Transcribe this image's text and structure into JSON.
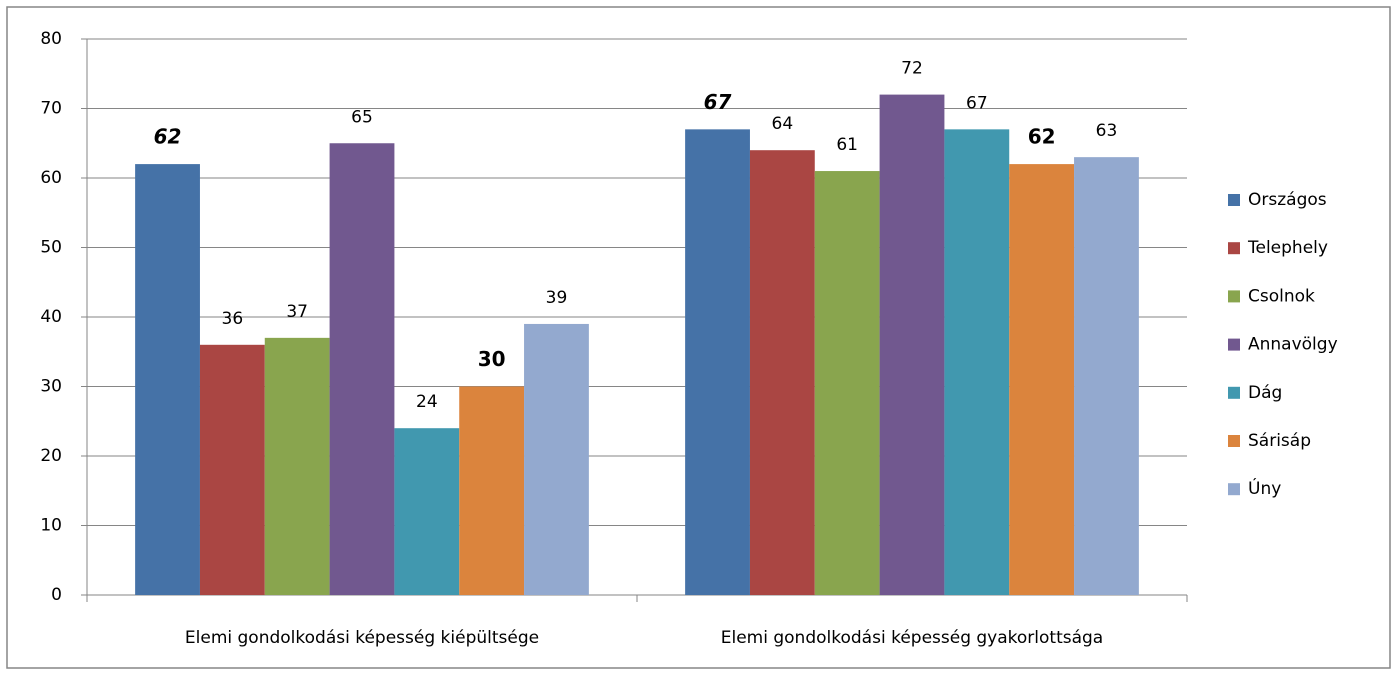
{
  "chart_data": {
    "type": "bar",
    "categories": [
      "Elemi gondolkodási képesség kiépültsége",
      "Elemi gondolkodási képesség gyakorlottsága"
    ],
    "series": [
      {
        "name": "Országos",
        "color": "#4572a7",
        "values": [
          62,
          67
        ]
      },
      {
        "name": "Telephely",
        "color": "#aa4643",
        "values": [
          36,
          64
        ]
      },
      {
        "name": "Csolnok",
        "color": "#89a54e",
        "values": [
          37,
          61
        ]
      },
      {
        "name": "Annavölgy",
        "color": "#71588f",
        "values": [
          65,
          72
        ]
      },
      {
        "name": "Dág",
        "color": "#4198af",
        "values": [
          24,
          67
        ]
      },
      {
        "name": "Sárisáp",
        "color": "#db843d",
        "values": [
          30,
          62
        ]
      },
      {
        "name": "Úny",
        "color": "#93a9cf",
        "values": [
          39,
          63
        ]
      }
    ],
    "ylim": [
      0,
      80
    ],
    "yticks": [
      0,
      10,
      20,
      30,
      40,
      50,
      60,
      70,
      80
    ],
    "grid": true,
    "legend": "right"
  }
}
